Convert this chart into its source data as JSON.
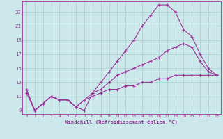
{
  "xlabel": "Windchill (Refroidissement éolien,°C)",
  "background_color": "#cce8ea",
  "grid_color": "#aacccc",
  "line_color": "#993399",
  "xlim": [
    -0.5,
    23.5
  ],
  "ylim": [
    8.5,
    24.5
  ],
  "yticks": [
    9,
    11,
    13,
    15,
    17,
    19,
    21,
    23
  ],
  "xticks": [
    0,
    1,
    2,
    3,
    4,
    5,
    6,
    7,
    8,
    9,
    10,
    11,
    12,
    13,
    14,
    15,
    16,
    17,
    18,
    19,
    20,
    21,
    22,
    23
  ],
  "series1_x": [
    0,
    1,
    2,
    3,
    4,
    5,
    6,
    7,
    8,
    9,
    10,
    11,
    12,
    13,
    14,
    15,
    16,
    17,
    18,
    19,
    20,
    21,
    22,
    23
  ],
  "series1_y": [
    12,
    9,
    10,
    11,
    10.5,
    10.5,
    9.5,
    9.0,
    11.5,
    13,
    14.5,
    16,
    17.5,
    19,
    21,
    22.5,
    24,
    24,
    23,
    20.5,
    19.5,
    17,
    15,
    14
  ],
  "series2_x": [
    0,
    1,
    2,
    3,
    4,
    5,
    6,
    7,
    8,
    9,
    10,
    11,
    12,
    13,
    14,
    15,
    16,
    17,
    18,
    19,
    20,
    21,
    22,
    23
  ],
  "series2_y": [
    12,
    9,
    10,
    11,
    10.5,
    10.5,
    9.5,
    10.5,
    11.5,
    12,
    13,
    14,
    14.5,
    15,
    15.5,
    16,
    16.5,
    17.5,
    18,
    18.5,
    18,
    16,
    14.5,
    14
  ],
  "series3_x": [
    0,
    1,
    2,
    3,
    4,
    5,
    6,
    7,
    8,
    9,
    10,
    11,
    12,
    13,
    14,
    15,
    16,
    17,
    18,
    19,
    20,
    21,
    22,
    23
  ],
  "series3_y": [
    11.5,
    9,
    10,
    11,
    10.5,
    10.5,
    9.5,
    10.5,
    11,
    11.5,
    12,
    12,
    12.5,
    12.5,
    13,
    13,
    13.5,
    13.5,
    14,
    14,
    14,
    14,
    14,
    14
  ]
}
